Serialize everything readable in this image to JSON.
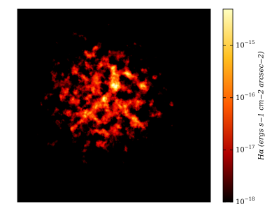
{
  "chart_data": {
    "type": "image",
    "colorbar": {
      "label": "Hα (ergs s−1 cm−2 arcsec−2)",
      "scale": "log",
      "ylim": [
        1e-18,
        5e-15
      ],
      "yticks": [
        {
          "value": 1e-18,
          "label": "10−18"
        },
        {
          "value": 1e-17,
          "label": "10−17"
        },
        {
          "value": 1e-16,
          "label": "10−16"
        },
        {
          "value": 1e-15,
          "label": "10−15"
        }
      ],
      "colormap": [
        "#000000",
        "#b00000",
        "#ff5a00",
        "#ffc020",
        "#ffffc0"
      ]
    }
  }
}
